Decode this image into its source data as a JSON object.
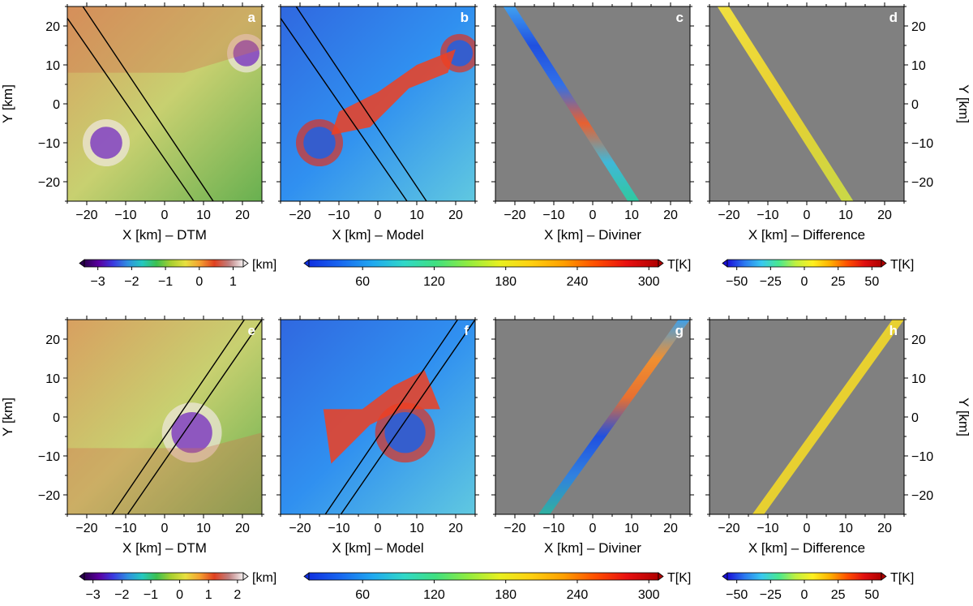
{
  "figure": {
    "rows": [
      {
        "panels": [
          {
            "id": "a",
            "letter": "a",
            "type": "dtm",
            "xlabel": "X [km] – DTM",
            "swath": "nw-se",
            "left_axis": true,
            "right_axis": false
          },
          {
            "id": "b",
            "letter": "b",
            "type": "model",
            "xlabel": "X [km] – Model",
            "swath": "nw-se",
            "left_axis": false,
            "right_axis": false
          },
          {
            "id": "c",
            "letter": "c",
            "type": "diviner",
            "xlabel": "X [km] – Diviner",
            "swath": "nw-se",
            "left_axis": false,
            "right_axis": false
          },
          {
            "id": "d",
            "letter": "d",
            "type": "difference",
            "xlabel": "X [km] – Difference",
            "swath": "nw-se",
            "left_axis": false,
            "right_axis": true
          }
        ],
        "colorbars": [
          {
            "kind": "dtm",
            "unit": "[km]",
            "ticks": [
              -3,
              -2,
              -1,
              0,
              1
            ],
            "range": [
              -3.4,
              1.3
            ]
          },
          {
            "kind": "temp",
            "unit": "T[K]",
            "ticks": [
              60,
              120,
              180,
              240,
              300
            ],
            "range": [
              15,
              308
            ]
          },
          {
            "kind": "diff",
            "unit": "T[K]",
            "ticks": [
              -50,
              -25,
              0,
              25,
              50
            ],
            "range": [
              -57,
              57
            ]
          }
        ]
      },
      {
        "panels": [
          {
            "id": "e",
            "letter": "e",
            "type": "dtm",
            "xlabel": "X [km] – DTM",
            "swath": "sw-ne",
            "left_axis": true,
            "right_axis": false
          },
          {
            "id": "f",
            "letter": "f",
            "type": "model",
            "xlabel": "X [km] – Model",
            "swath": "sw-ne",
            "left_axis": false,
            "right_axis": false
          },
          {
            "id": "g",
            "letter": "g",
            "type": "diviner",
            "xlabel": "X [km] – Diviner",
            "swath": "sw-ne",
            "left_axis": false,
            "right_axis": false
          },
          {
            "id": "h",
            "letter": "h",
            "type": "difference",
            "xlabel": "X [km] – Difference",
            "swath": "sw-ne",
            "left_axis": false,
            "right_axis": true
          }
        ],
        "colorbars": [
          {
            "kind": "dtm",
            "unit": "[km]",
            "ticks": [
              -3,
              -2,
              -1,
              0,
              1,
              2
            ],
            "range": [
              -3.3,
              2.2
            ]
          },
          {
            "kind": "temp",
            "unit": "T[K]",
            "ticks": [
              60,
              120,
              180,
              240,
              300
            ],
            "range": [
              15,
              308
            ]
          },
          {
            "kind": "diff",
            "unit": "T[K]",
            "ticks": [
              -50,
              -25,
              0,
              25,
              50
            ],
            "range": [
              -57,
              57
            ]
          }
        ]
      }
    ],
    "x_ticks": [
      -20,
      -10,
      0,
      10,
      20
    ],
    "y_ticks": [
      -20,
      -10,
      0,
      10,
      20
    ],
    "axis_range": [
      -25,
      25
    ],
    "ylabel": "Y [km]",
    "colors": {
      "no_data": "#808080",
      "swath_outline": "#000000"
    }
  }
}
